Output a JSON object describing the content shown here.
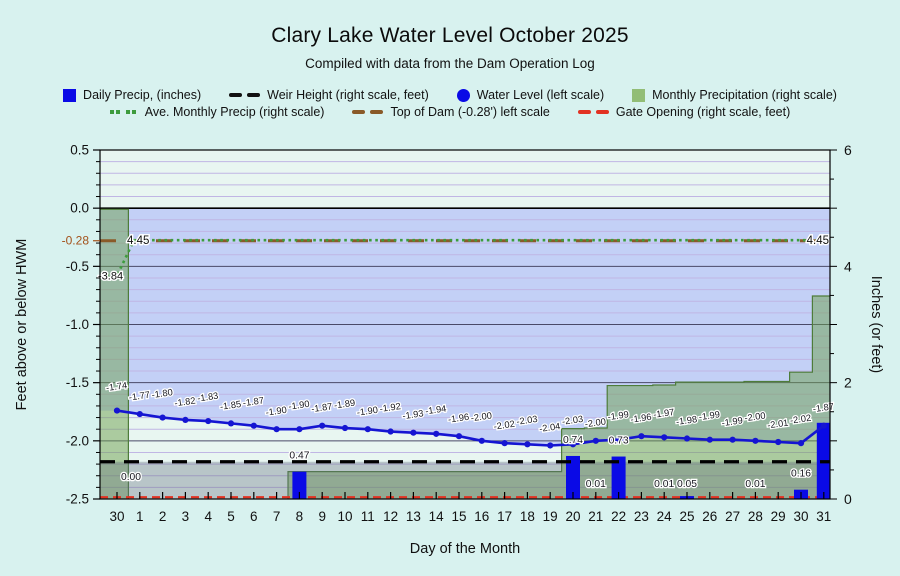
{
  "page": {
    "title": "Clary Lake Water Level October 2025",
    "subtitle": "Compiled with data from the Dam Operation Log"
  },
  "legend": {
    "rows": [
      [
        {
          "marker": "square-blue",
          "label": "Daily Precip, (inches)"
        },
        {
          "marker": "dash-black",
          "label": "Weir Height (right scale, feet)"
        },
        {
          "marker": "circle-blue",
          "label": "Water Level (left scale)"
        },
        {
          "marker": "square-green",
          "label": "Monthly Precipitation (right scale)"
        }
      ],
      [
        {
          "marker": "dots-green",
          "label": "Ave. Monthly Precip (right scale)"
        },
        {
          "marker": "dash-brown",
          "label": "Top of Dam (-0.28') left scale"
        },
        {
          "marker": "dash-red",
          "label": "Gate Opening (right scale, feet)"
        }
      ]
    ]
  },
  "colors": {
    "daily_precip": "#0a0ae6",
    "water_level": "#1515d2",
    "monthly_precip_fill": "rgba(110,160,78,0.50)",
    "monthly_precip_edge": "#4e7c3a",
    "ave_monthly": "#3d9c3d",
    "weir": "#000000",
    "top_of_dam": "#8a5a28",
    "gate": "#e23222",
    "hwm_band": "#c3d0f6",
    "weir_band": "rgba(100,112,128,0.36)",
    "plot_bg": "#e8f6f1",
    "minor_grid": "#c0b6e4",
    "major_grid": "#4a4a68",
    "special_tick": "#a3521b"
  },
  "chart_data": {
    "type": "combo (bar + line + cumulative step area + reference lines)",
    "title": "Clary Lake Water Level October 2025",
    "subtitle": "Compiled with data from the Dam Operation Log",
    "xlabel": "Day of the Month",
    "x_categories": [
      "30",
      "1",
      "2",
      "3",
      "4",
      "5",
      "6",
      "7",
      "8",
      "9",
      "10",
      "11",
      "12",
      "13",
      "14",
      "15",
      "16",
      "17",
      "18",
      "19",
      "20",
      "21",
      "22",
      "23",
      "24",
      "25",
      "26",
      "27",
      "28",
      "29",
      "30",
      "31"
    ],
    "left_axis": {
      "title": "Feet above or below HWM",
      "range": [
        -2.5,
        0.5
      ],
      "major_ticks": [
        {
          "v": 0.5,
          "t": "0.5"
        },
        {
          "v": 0.0,
          "t": "0.0"
        },
        {
          "v": -0.5,
          "t": "-0.5"
        },
        {
          "v": -1.0,
          "t": "-1.0"
        },
        {
          "v": -1.5,
          "t": "-1.5"
        },
        {
          "v": -2.0,
          "t": "-2.0"
        },
        {
          "v": -2.5,
          "t": "-2.5"
        }
      ],
      "special_tick": {
        "v": -0.28,
        "t": "-0.28"
      },
      "minor_step": 0.1
    },
    "right_axis": {
      "title": "Inches (or feet)",
      "range": [
        0,
        6
      ],
      "major_ticks": [
        {
          "v": 0,
          "t": "0"
        },
        {
          "v": 2,
          "t": "2"
        },
        {
          "v": 4,
          "t": "4"
        },
        {
          "v": 6,
          "t": "6"
        }
      ]
    },
    "series": [
      {
        "name": "Water Level (left scale)",
        "type": "line",
        "axis": "left",
        "values": [
          -1.74,
          -1.77,
          -1.8,
          -1.82,
          -1.83,
          -1.85,
          -1.87,
          -1.9,
          -1.9,
          -1.87,
          -1.89,
          -1.9,
          -1.92,
          -1.93,
          -1.94,
          -1.96,
          -2.0,
          -2.02,
          -2.03,
          -2.04,
          -2.03,
          -2.0,
          -1.99,
          -1.96,
          -1.97,
          -1.98,
          -1.99,
          -1.99,
          -2.0,
          -2.01,
          -2.02,
          -1.87
        ]
      },
      {
        "name": "Daily Precip, (inches)",
        "type": "bar",
        "axis": "right",
        "values": [
          0.0,
          0,
          0,
          0,
          0,
          0,
          0,
          0,
          0.47,
          0,
          0,
          0,
          0,
          0,
          0,
          0,
          0,
          0,
          0,
          0,
          0.74,
          0.01,
          0.73,
          0,
          0.01,
          0.05,
          0,
          0,
          0.01,
          0,
          0.16,
          1.31
        ],
        "shown_labels": [
          {
            "index": 0,
            "text": "0.00"
          },
          {
            "index": 8,
            "text": "0.47"
          },
          {
            "index": 20,
            "text": "0.74"
          },
          {
            "index": 21,
            "text": "0.01"
          },
          {
            "index": 22,
            "text": "0.73"
          },
          {
            "index": 24,
            "text": "0.01"
          },
          {
            "index": 25,
            "text": "0.05"
          },
          {
            "index": 28,
            "text": "0.01"
          },
          {
            "index": 30,
            "text": "0.16"
          }
        ]
      },
      {
        "name": "Monthly Precipitation (right scale)",
        "type": "cumulative-step-area",
        "axis": "right",
        "september_total": 4.98,
        "october_cumulative_final": 3.49
      },
      {
        "name": "Ave. Monthly Precip (right scale)",
        "type": "dotted-line",
        "axis": "right",
        "september_value": 3.84,
        "october_value": 4.45,
        "annotations": [
          {
            "text": "-3.84",
            "anchor": "september"
          },
          {
            "text": "4.45",
            "anchor": "october-left"
          },
          {
            "text": "4.45",
            "anchor": "october-right"
          }
        ]
      },
      {
        "name": "Weir Height (right scale, feet)",
        "type": "hline-dashed",
        "axis": "right",
        "value": 0.64
      },
      {
        "name": "Top of Dam (-0.28') left scale",
        "type": "hline-dashed",
        "axis": "left",
        "value": -0.28
      },
      {
        "name": "Gate Opening (right scale, feet)",
        "type": "hline-dashed",
        "axis": "right",
        "value": 0.0
      }
    ],
    "legend_position": "top",
    "grid": {
      "minor_horizontal": true,
      "major_horizontal": true
    }
  }
}
